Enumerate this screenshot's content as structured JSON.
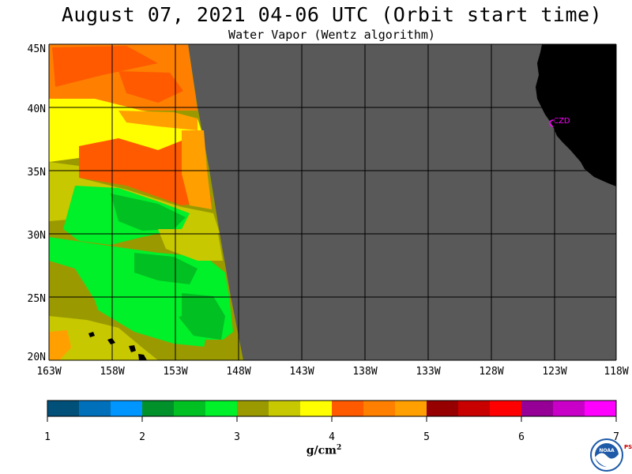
{
  "header": {
    "title": "August 07, 2021  04-06 UTC  (Orbit start time)",
    "subtitle": "Water Vapor (Wentz algorithm)"
  },
  "map": {
    "lat_labels": [
      "45N",
      "40N",
      "35N",
      "30N",
      "25N",
      "20N"
    ],
    "lon_labels": [
      "163W",
      "158W",
      "153W",
      "148W",
      "143W",
      "138W",
      "133W",
      "128W",
      "123W",
      "118W"
    ],
    "station_label": "CZD",
    "no_data_color": "#595959",
    "land_color": "#000000",
    "station_color": "#ff00ff"
  },
  "colorbar": {
    "colors": [
      "#00507a",
      "#0070bb",
      "#0095ff",
      "#00912a",
      "#00c022",
      "#00f02a",
      "#9a9a00",
      "#c8c800",
      "#ffff00",
      "#ff5a00",
      "#ff8000",
      "#ffa000",
      "#960000",
      "#c80000",
      "#ff0000",
      "#960096",
      "#c800c8",
      "#ff00ff"
    ],
    "tick_labels": [
      "1",
      "2",
      "3",
      "4",
      "5",
      "6",
      "7"
    ],
    "units": "g/cm",
    "units_sup": "2"
  },
  "logo": {
    "text": "NOAA",
    "side": "PSL"
  }
}
